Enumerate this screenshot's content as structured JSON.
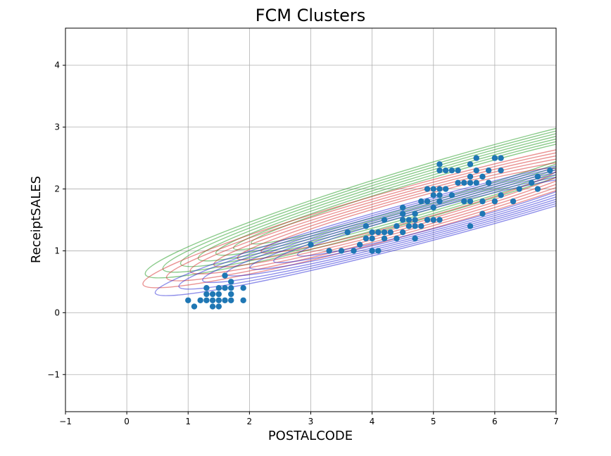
{
  "chart_data": {
    "type": "scatter",
    "title": "FCM Clusters",
    "xlabel": "POSTALCODE",
    "ylabel": "ReceiptSALES",
    "xlim": [
      -1,
      7
    ],
    "ylim": [
      -1.6,
      4.6
    ],
    "grid": true,
    "xticks": [
      "−1",
      "0",
      "1",
      "2",
      "3",
      "4",
      "5",
      "6",
      "7"
    ],
    "yticks": [
      "−1",
      "0",
      "1",
      "2",
      "3",
      "4"
    ],
    "xtick_values": [
      -1,
      0,
      1,
      2,
      3,
      4,
      5,
      6,
      7
    ],
    "ytick_values": [
      -1,
      0,
      1,
      2,
      3,
      4
    ],
    "point_color": "#1f77b4",
    "points": [
      [
        1.0,
        0.2
      ],
      [
        1.1,
        0.1
      ],
      [
        1.2,
        0.2
      ],
      [
        1.3,
        0.4
      ],
      [
        1.3,
        0.3
      ],
      [
        1.3,
        0.2
      ],
      [
        1.4,
        0.3
      ],
      [
        1.4,
        0.2
      ],
      [
        1.4,
        0.1
      ],
      [
        1.5,
        0.4
      ],
      [
        1.5,
        0.3
      ],
      [
        1.5,
        0.2
      ],
      [
        1.5,
        0.1
      ],
      [
        1.6,
        0.6
      ],
      [
        1.6,
        0.4
      ],
      [
        1.6,
        0.2
      ],
      [
        1.7,
        0.5
      ],
      [
        1.7,
        0.4
      ],
      [
        1.7,
        0.3
      ],
      [
        1.7,
        0.2
      ],
      [
        1.9,
        0.4
      ],
      [
        1.9,
        0.2
      ],
      [
        3.0,
        1.1
      ],
      [
        3.3,
        1.0
      ],
      [
        3.5,
        1.0
      ],
      [
        3.6,
        1.3
      ],
      [
        3.7,
        1.0
      ],
      [
        3.8,
        1.1
      ],
      [
        3.9,
        1.2
      ],
      [
        3.9,
        1.4
      ],
      [
        4.0,
        1.3
      ],
      [
        4.0,
        1.2
      ],
      [
        4.0,
        1.0
      ],
      [
        4.1,
        1.3
      ],
      [
        4.1,
        1.0
      ],
      [
        4.2,
        1.3
      ],
      [
        4.2,
        1.2
      ],
      [
        4.2,
        1.5
      ],
      [
        4.3,
        1.3
      ],
      [
        4.4,
        1.4
      ],
      [
        4.4,
        1.2
      ],
      [
        4.5,
        1.7
      ],
      [
        4.5,
        1.6
      ],
      [
        4.5,
        1.5
      ],
      [
        4.5,
        1.3
      ],
      [
        4.6,
        1.5
      ],
      [
        4.6,
        1.4
      ],
      [
        4.7,
        1.6
      ],
      [
        4.7,
        1.5
      ],
      [
        4.7,
        1.4
      ],
      [
        4.7,
        1.2
      ],
      [
        4.8,
        1.8
      ],
      [
        4.8,
        1.4
      ],
      [
        4.9,
        2.0
      ],
      [
        4.9,
        1.8
      ],
      [
        4.9,
        1.5
      ],
      [
        5.0,
        2.0
      ],
      [
        5.0,
        1.9
      ],
      [
        5.0,
        1.7
      ],
      [
        5.0,
        1.5
      ],
      [
        5.1,
        2.4
      ],
      [
        5.1,
        2.3
      ],
      [
        5.1,
        2.0
      ],
      [
        5.1,
        1.9
      ],
      [
        5.1,
        1.8
      ],
      [
        5.1,
        1.5
      ],
      [
        5.2,
        2.3
      ],
      [
        5.2,
        2.0
      ],
      [
        5.3,
        2.3
      ],
      [
        5.3,
        1.9
      ],
      [
        5.4,
        2.3
      ],
      [
        5.4,
        2.1
      ],
      [
        5.5,
        2.1
      ],
      [
        5.5,
        1.8
      ],
      [
        5.6,
        2.4
      ],
      [
        5.6,
        2.2
      ],
      [
        5.6,
        2.1
      ],
      [
        5.6,
        1.8
      ],
      [
        5.6,
        1.4
      ],
      [
        5.7,
        2.5
      ],
      [
        5.7,
        2.3
      ],
      [
        5.7,
        2.1
      ],
      [
        5.8,
        2.2
      ],
      [
        5.8,
        1.8
      ],
      [
        5.8,
        1.6
      ],
      [
        5.9,
        2.3
      ],
      [
        5.9,
        2.1
      ],
      [
        6.0,
        2.5
      ],
      [
        6.0,
        1.8
      ],
      [
        6.1,
        2.5
      ],
      [
        6.1,
        2.3
      ],
      [
        6.1,
        1.9
      ],
      [
        6.3,
        1.8
      ],
      [
        6.4,
        2.0
      ],
      [
        6.6,
        2.1
      ],
      [
        6.7,
        2.2
      ],
      [
        6.7,
        2.0
      ],
      [
        6.9,
        2.3
      ]
    ],
    "contour_groups": [
      {
        "color": "#2ca02c",
        "opacity": 0.55,
        "center": [
          5.0,
          2.0
        ],
        "angle_deg": 16.5,
        "rings": [
          [
            3.1,
            0.18
          ],
          [
            3.4,
            0.22
          ],
          [
            3.7,
            0.26
          ],
          [
            4.0,
            0.3
          ],
          [
            4.3,
            0.34
          ],
          [
            4.6,
            0.38
          ],
          [
            4.9,
            0.42
          ]
        ]
      },
      {
        "color": "#d62728",
        "opacity": 0.5,
        "center": [
          4.6,
          1.65
        ],
        "angle_deg": 15.5,
        "rings": [
          [
            2.5,
            0.18
          ],
          [
            2.9,
            0.22
          ],
          [
            3.3,
            0.26
          ],
          [
            3.7,
            0.3
          ],
          [
            4.1,
            0.34
          ],
          [
            4.5,
            0.38
          ]
        ]
      },
      {
        "color": "#1f1fd6",
        "opacity": 0.5,
        "center": [
          5.1,
          1.55
        ],
        "angle_deg": 15.0,
        "rings": [
          [
            2.4,
            0.16
          ],
          [
            2.8,
            0.19
          ],
          [
            3.2,
            0.22
          ],
          [
            3.6,
            0.25
          ],
          [
            4.0,
            0.28
          ],
          [
            4.4,
            0.31
          ],
          [
            4.8,
            0.34
          ]
        ]
      }
    ]
  }
}
